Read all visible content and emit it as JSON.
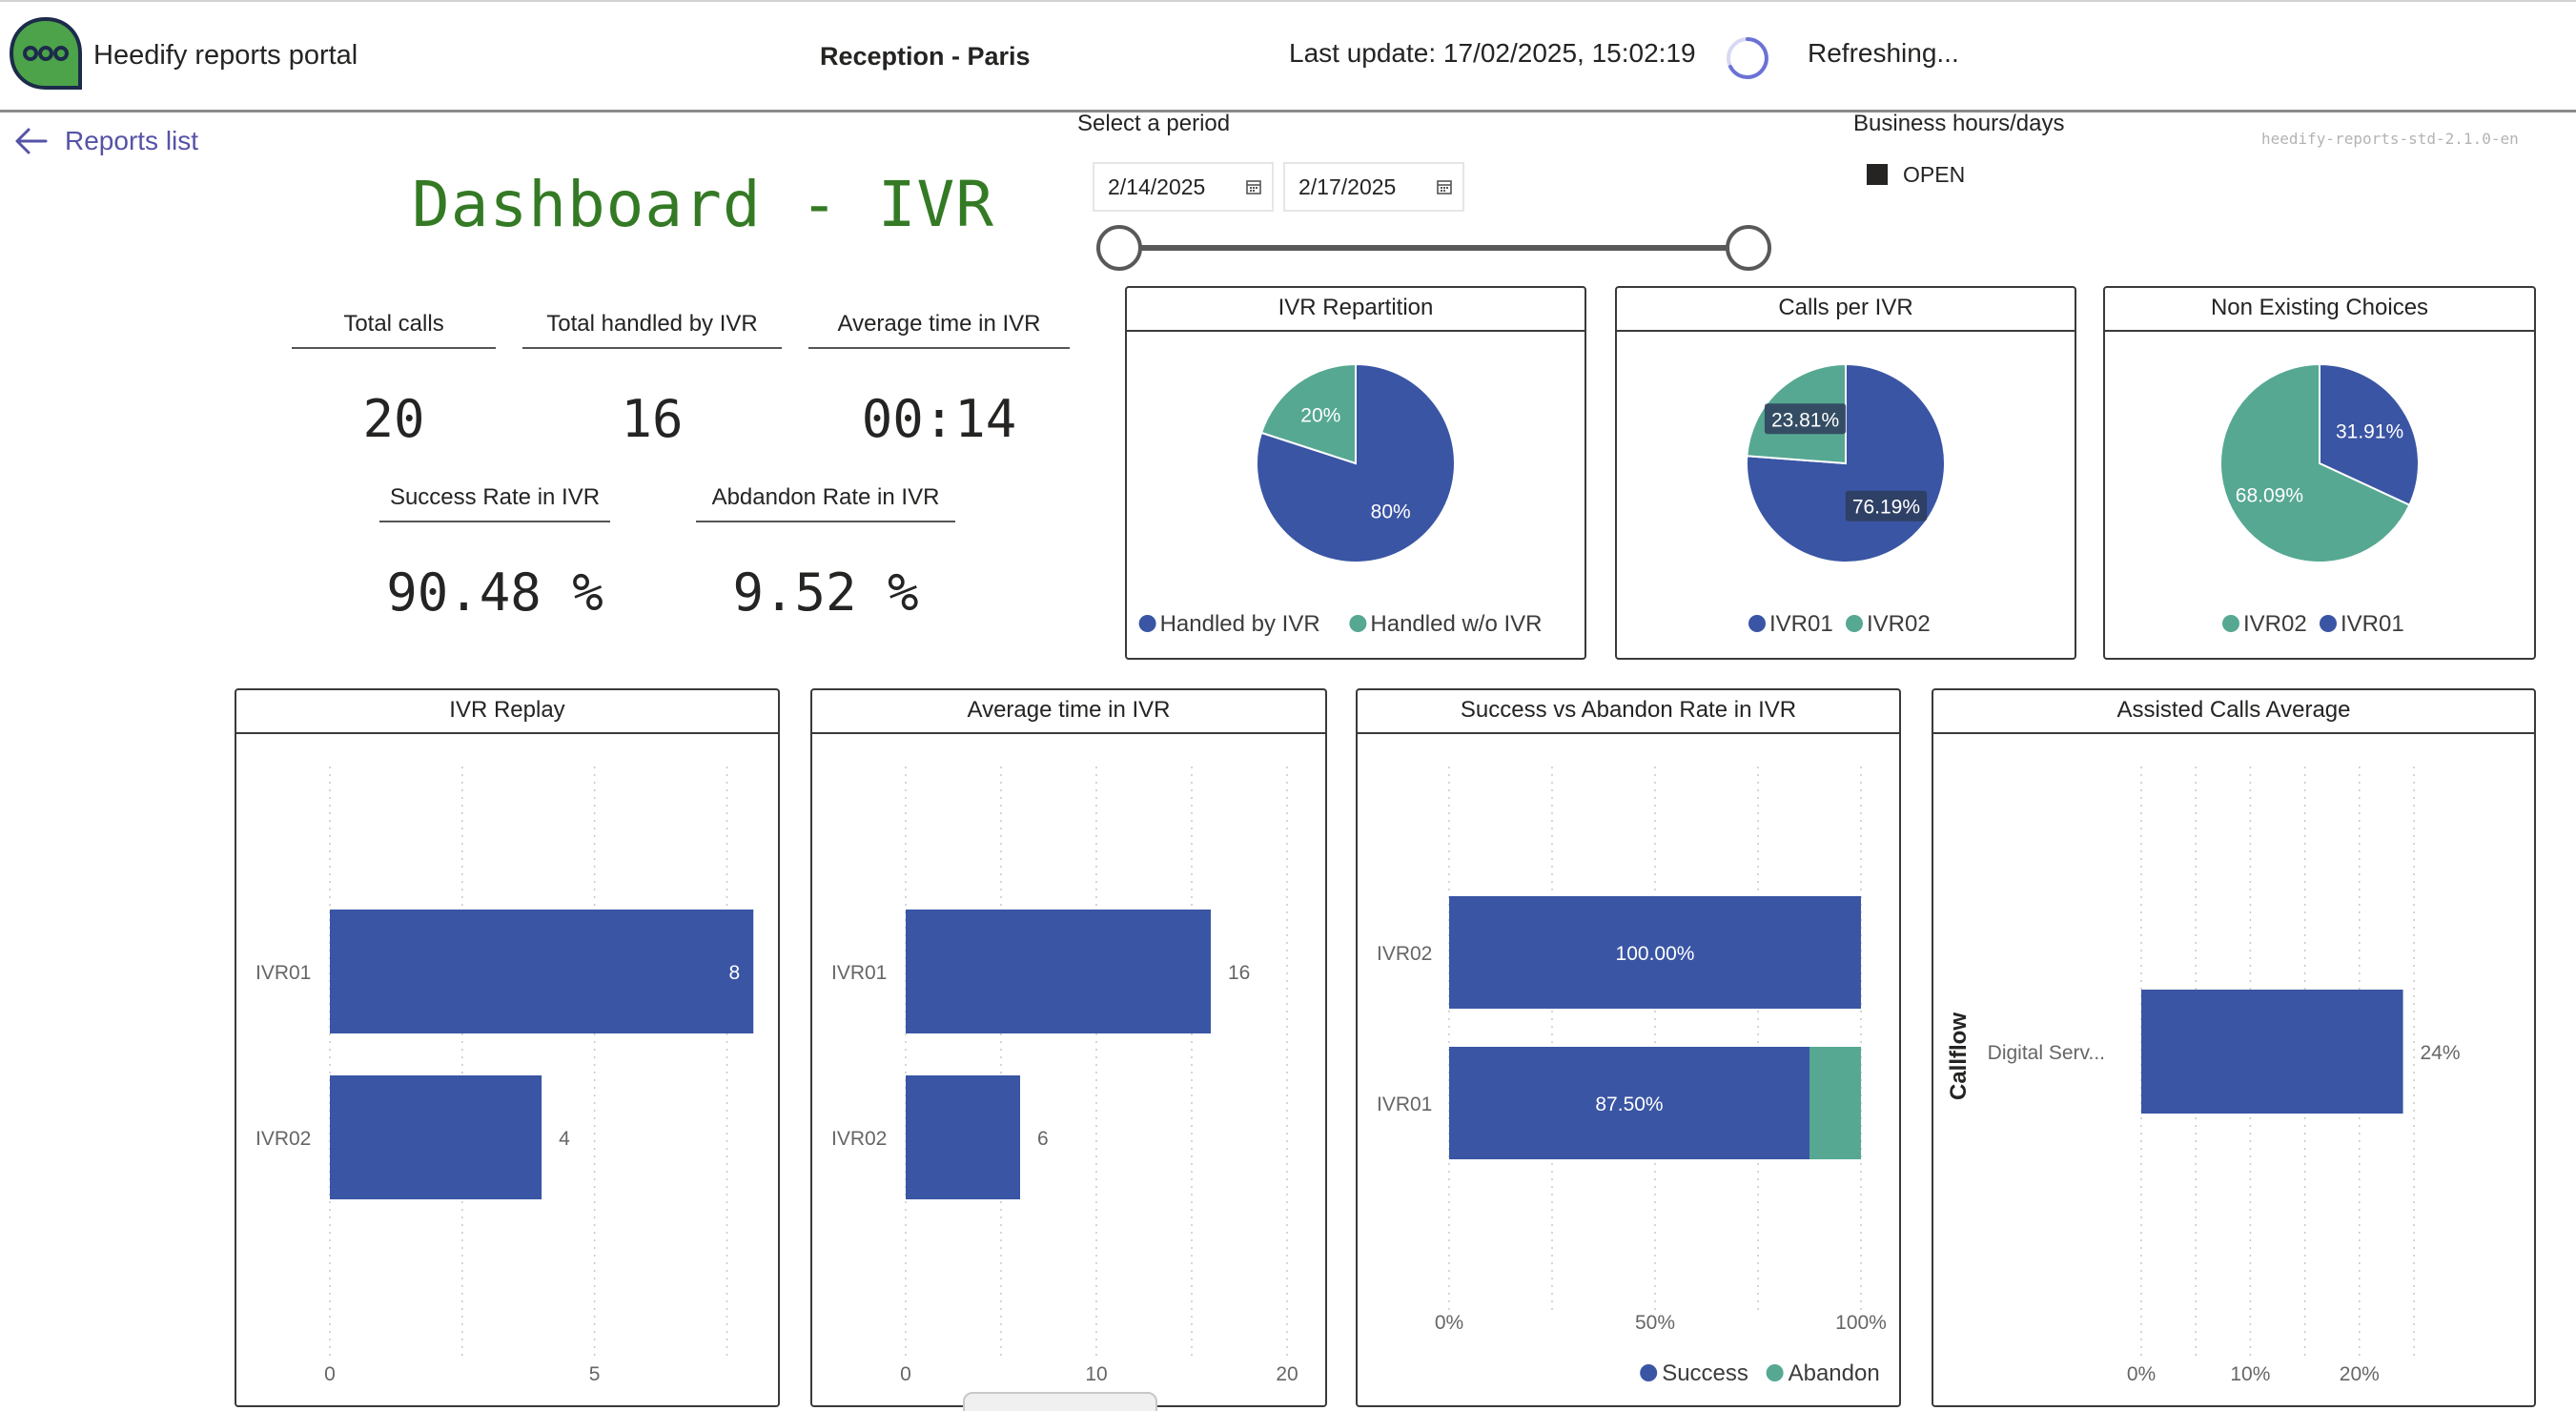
{
  "header": {
    "app_title": "Heedify reports portal",
    "subtitle": "Reception - Paris",
    "last_update": "Last update: 17/02/2025, 15:02:19",
    "refresh_status": "Refreshing..."
  },
  "nav": {
    "back_label": "Reports list"
  },
  "dashboard_title": "Dashboard - IVR",
  "kpis": {
    "total_calls": {
      "label": "Total calls",
      "value": "20"
    },
    "total_handled": {
      "label": "Total handled by IVR",
      "value": "16"
    },
    "average_time": {
      "label": "Average time in IVR",
      "value": "00:14"
    },
    "success_rate": {
      "label": "Success Rate in IVR",
      "value": "90.48 %"
    },
    "abandon_rate": {
      "label": "Abdandon Rate in IVR",
      "value": "9.52 %"
    }
  },
  "filters": {
    "period_label": "Select a period",
    "date_start": "2/14/2025",
    "date_end": "2/17/2025",
    "business_hours_label": "Business hours/days",
    "business_hours_option": "OPEN"
  },
  "version": "heedify-reports-std-2.1.0-en",
  "colors": {
    "blue": "#3a55a4",
    "green": "#56a892",
    "title_green": "#347a25",
    "link": "#5553a6"
  },
  "chart_data": [
    {
      "type": "pie",
      "title": "IVR Repartition",
      "slices": [
        {
          "name": "Handled by IVR",
          "value": 80,
          "label": "80%",
          "color": "#3a55a4"
        },
        {
          "name": "Handled w/o IVR",
          "value": 20,
          "label": "20%",
          "color": "#56a892"
        }
      ],
      "legend": [
        "Handled by IVR",
        "Handled w/o IVR"
      ],
      "legend_position": "bottom"
    },
    {
      "type": "pie",
      "title": "Calls per IVR",
      "slices": [
        {
          "name": "IVR01",
          "value": 76.19,
          "label": "76.19%",
          "color": "#3a55a4"
        },
        {
          "name": "IVR02",
          "value": 23.81,
          "label": "23.81%",
          "color": "#56a892"
        }
      ],
      "legend": [
        "IVR01",
        "IVR02"
      ],
      "legend_position": "bottom"
    },
    {
      "type": "pie",
      "title": "Non Existing Choices",
      "slices": [
        {
          "name": "IVR01",
          "value": 31.91,
          "label": "31.91%",
          "color": "#3a55a4"
        },
        {
          "name": "IVR02",
          "value": 68.09,
          "label": "68.09%",
          "color": "#56a892"
        }
      ],
      "legend": [
        "IVR02",
        "IVR01"
      ],
      "legend_position": "bottom"
    },
    {
      "type": "bar",
      "orientation": "horizontal",
      "title": "IVR Replay",
      "categories": [
        "IVR01",
        "IVR02"
      ],
      "values": [
        8,
        4
      ],
      "data_labels": [
        "8",
        "4"
      ],
      "xlim": [
        0,
        8.5
      ],
      "ticks": [
        "0",
        "5"
      ],
      "tick_values": [
        0,
        5
      ],
      "grid_values": [
        0,
        2.5,
        5,
        7.5
      ],
      "grid": true
    },
    {
      "type": "bar",
      "orientation": "horizontal",
      "title": "Average time in IVR",
      "categories": [
        "IVR01",
        "IVR02"
      ],
      "values": [
        16,
        6
      ],
      "data_labels": [
        "16",
        "6"
      ],
      "xlim": [
        0,
        20.5
      ],
      "ticks": [
        "0",
        "10",
        "20"
      ],
      "tick_values": [
        0,
        10,
        20
      ],
      "grid_values": [
        0,
        5,
        10,
        15,
        20
      ],
      "grid": true
    },
    {
      "type": "bar",
      "orientation": "horizontal",
      "stacked": true,
      "title": "Success vs Abandon Rate in IVR",
      "categories": [
        "IVR02",
        "IVR01"
      ],
      "series": [
        {
          "name": "Success",
          "values": [
            100,
            87.5
          ],
          "labels": [
            "100.00%",
            "87.50%"
          ],
          "color": "#3a55a4"
        },
        {
          "name": "Abandon",
          "values": [
            0,
            12.5
          ],
          "color": "#56a892"
        }
      ],
      "xlim": [
        0,
        100
      ],
      "ticks": [
        "0%",
        "50%",
        "100%"
      ],
      "tick_values": [
        0,
        50,
        100
      ],
      "grid_values": [
        0,
        25,
        50,
        75,
        100
      ],
      "grid": true,
      "legend": [
        "Success",
        "Abandon"
      ],
      "legend_position": "bottom-right"
    },
    {
      "type": "bar",
      "orientation": "horizontal",
      "title": "Assisted Calls Average",
      "ylabel": "Callflow",
      "categories": [
        "Digital Serv..."
      ],
      "values": [
        24
      ],
      "data_labels": [
        "24%"
      ],
      "xlim": [
        0,
        25
      ],
      "ticks": [
        "0%",
        "10%",
        "20%"
      ],
      "tick_values": [
        0,
        10,
        20
      ],
      "grid_values": [
        0,
        5,
        10,
        15,
        20,
        25
      ],
      "grid": true
    }
  ]
}
